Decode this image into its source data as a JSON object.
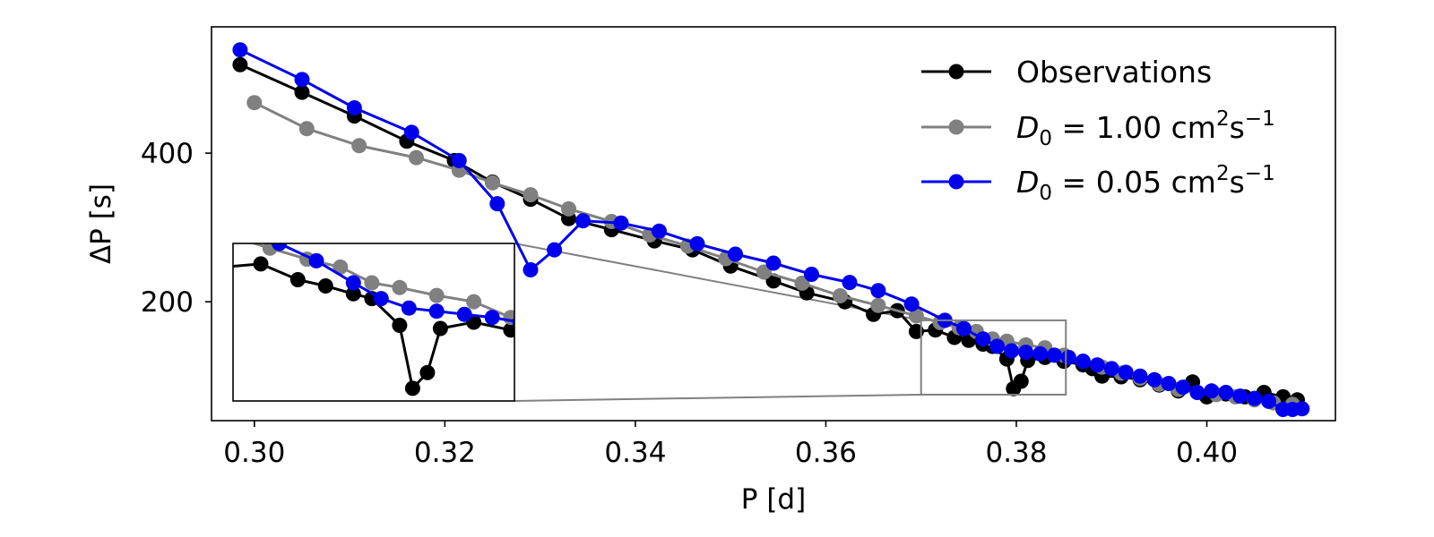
{
  "chart_data": {
    "type": "line",
    "xlabel": "P [d]",
    "ylabel": "ΔP [s]",
    "xlim": [
      0.2955,
      0.4135
    ],
    "ylim": [
      40,
      570
    ],
    "xticks": [
      0.3,
      0.32,
      0.34,
      0.36,
      0.38,
      0.4
    ],
    "xtick_labels": [
      "0.30",
      "0.32",
      "0.34",
      "0.36",
      "0.38",
      "0.40"
    ],
    "yticks": [
      200,
      400
    ],
    "ytick_labels": [
      "200",
      "400"
    ],
    "legend_location": "top-right",
    "inset": {
      "xlim": [
        0.37,
        0.3852
      ],
      "ylim": [
        75,
        175
      ],
      "location": "lower-left"
    },
    "series": [
      {
        "name": "Observations",
        "label": {
          "prefix": "Observations"
        },
        "color": "#000000",
        "points": [
          [
            0.2985,
            519
          ],
          [
            0.305,
            482
          ],
          [
            0.3105,
            450
          ],
          [
            0.316,
            416
          ],
          [
            0.321,
            390
          ],
          [
            0.325,
            361
          ],
          [
            0.329,
            338
          ],
          [
            0.333,
            312
          ],
          [
            0.3375,
            297
          ],
          [
            0.342,
            282
          ],
          [
            0.346,
            270
          ],
          [
            0.35,
            248
          ],
          [
            0.3545,
            228
          ],
          [
            0.358,
            212
          ],
          [
            0.362,
            200
          ],
          [
            0.365,
            183
          ],
          [
            0.3675,
            188
          ],
          [
            0.3695,
            160
          ],
          [
            0.3715,
            162
          ],
          [
            0.3735,
            152
          ],
          [
            0.375,
            148
          ],
          [
            0.3765,
            143
          ],
          [
            0.3775,
            140
          ],
          [
            0.379,
            123
          ],
          [
            0.3797,
            83
          ],
          [
            0.3805,
            93
          ],
          [
            0.3812,
            121
          ],
          [
            0.383,
            125
          ],
          [
            0.385,
            120
          ],
          [
            0.387,
            115
          ],
          [
            0.388,
            110
          ],
          [
            0.389,
            100
          ],
          [
            0.391,
            99
          ],
          [
            0.393,
            95
          ],
          [
            0.395,
            88
          ],
          [
            0.397,
            80
          ],
          [
            0.3985,
            92
          ],
          [
            0.4,
            72
          ],
          [
            0.402,
            76
          ],
          [
            0.404,
            72
          ],
          [
            0.406,
            78
          ],
          [
            0.408,
            72
          ],
          [
            0.4095,
            68
          ]
        ]
      },
      {
        "name": "D0 = 1.00 cm2s-1",
        "label": {
          "prefix": "D",
          "sub": "0",
          "mid": " = 1.00 cm",
          "sup1": "2",
          "mid2": "s",
          "sup2": "−1"
        },
        "color": "#808080",
        "points": [
          [
            0.3,
            468
          ],
          [
            0.3055,
            433
          ],
          [
            0.311,
            410
          ],
          [
            0.317,
            394
          ],
          [
            0.3215,
            377
          ],
          [
            0.325,
            360
          ],
          [
            0.329,
            344
          ],
          [
            0.333,
            325
          ],
          [
            0.3375,
            308
          ],
          [
            0.3415,
            290
          ],
          [
            0.3455,
            275
          ],
          [
            0.3495,
            258
          ],
          [
            0.3535,
            240
          ],
          [
            0.3575,
            225
          ],
          [
            0.3615,
            208
          ],
          [
            0.3655,
            195
          ],
          [
            0.3695,
            181
          ],
          [
            0.372,
            172
          ],
          [
            0.374,
            165
          ],
          [
            0.3758,
            160
          ],
          [
            0.3775,
            150
          ],
          [
            0.379,
            147
          ],
          [
            0.381,
            142
          ],
          [
            0.383,
            138
          ],
          [
            0.385,
            128
          ],
          [
            0.387,
            120
          ],
          [
            0.389,
            112
          ],
          [
            0.391,
            104
          ],
          [
            0.393,
            97
          ],
          [
            0.395,
            89
          ],
          [
            0.397,
            82
          ],
          [
            0.399,
            78
          ],
          [
            0.401,
            75
          ],
          [
            0.403,
            72
          ],
          [
            0.405,
            68
          ],
          [
            0.407,
            64
          ],
          [
            0.409,
            62
          ]
        ]
      },
      {
        "name": "D0 = 0.05 cm2s-1",
        "label": {
          "prefix": "D",
          "sub": "0",
          "mid": " = 0.05 cm",
          "sup1": "2",
          "mid2": "s",
          "sup2": "−1"
        },
        "color": "#0000ee",
        "points": [
          [
            0.2985,
            539
          ],
          [
            0.305,
            499
          ],
          [
            0.3105,
            461
          ],
          [
            0.3165,
            428
          ],
          [
            0.3215,
            390
          ],
          [
            0.3255,
            332
          ],
          [
            0.329,
            243
          ],
          [
            0.3315,
            270
          ],
          [
            0.3345,
            309
          ],
          [
            0.3385,
            306
          ],
          [
            0.3425,
            295
          ],
          [
            0.3465,
            278
          ],
          [
            0.3505,
            264
          ],
          [
            0.3545,
            252
          ],
          [
            0.3585,
            237
          ],
          [
            0.3625,
            226
          ],
          [
            0.3655,
            215
          ],
          [
            0.369,
            197
          ],
          [
            0.3725,
            175
          ],
          [
            0.3745,
            164
          ],
          [
            0.3765,
            150
          ],
          [
            0.378,
            140
          ],
          [
            0.3795,
            134
          ],
          [
            0.381,
            132
          ],
          [
            0.3825,
            130
          ],
          [
            0.384,
            128
          ],
          [
            0.3855,
            125
          ],
          [
            0.387,
            120
          ],
          [
            0.3885,
            115
          ],
          [
            0.39,
            110
          ],
          [
            0.3915,
            105
          ],
          [
            0.393,
            100
          ],
          [
            0.3945,
            95
          ],
          [
            0.396,
            90
          ],
          [
            0.3975,
            85
          ],
          [
            0.399,
            78
          ],
          [
            0.4005,
            80
          ],
          [
            0.402,
            78
          ],
          [
            0.4035,
            73
          ],
          [
            0.405,
            70
          ],
          [
            0.4065,
            66
          ],
          [
            0.408,
            55
          ],
          [
            0.409,
            55
          ],
          [
            0.41,
            56
          ]
        ]
      }
    ]
  }
}
